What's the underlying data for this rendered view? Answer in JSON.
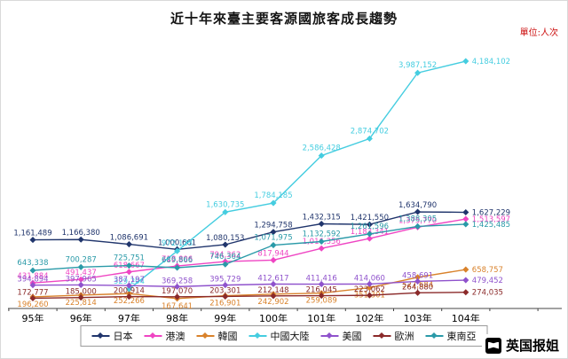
{
  "page": {
    "title": "近十年來臺主要客源國旅客成長趨勢",
    "unit_label": "單位:人次"
  },
  "watermark": {
    "text": "英国报姐"
  },
  "chart_data": {
    "type": "line",
    "title": "近十年來臺主要客源國旅客成長趨勢",
    "unit_label": "單位:人次",
    "categories": [
      "95年",
      "96年",
      "97年",
      "98年",
      "99年",
      "100年",
      "101年",
      "102年",
      "103年",
      "104年"
    ],
    "ylim": [
      0,
      4400000
    ],
    "grid": false,
    "legend_position": "bottom",
    "series": [
      {
        "name": "日本",
        "color": "#20356c",
        "values": [
          1161489,
          1166380,
          1086691,
          1000661,
          1080153,
          1294758,
          1432315,
          1421550,
          1634790,
          1627229
        ]
      },
      {
        "name": "港澳",
        "color": "#ef45c3",
        "values": [
          431884,
          491437,
          618667,
          718806,
          794362,
          817944,
          1016356,
          1183341,
          1375770,
          1513597
        ]
      },
      {
        "name": "韓國",
        "color": "#d9822b",
        "values": [
          196260,
          225814,
          252266,
          167641,
          216901,
          242902,
          259089,
          351301,
          527684,
          658757
        ]
      },
      {
        "name": "中國大陸",
        "color": "#45cde0",
        "values": [
          null,
          null,
          329204,
          972123,
          1630735,
          1784185,
          2586428,
          2874702,
          3987152,
          4184102
        ]
      },
      {
        "name": "美國",
        "color": "#8f52cc",
        "values": [
          394894,
          397965,
          387197,
          369258,
          395729,
          412617,
          411416,
          414060,
          458691,
          479452
        ]
      },
      {
        "name": "歐洲",
        "color": "#8b2a2a",
        "values": [
          172777,
          185000,
          200914,
          197070,
          203301,
          212148,
          216045,
          223062,
          264880,
          274035
        ]
      },
      {
        "name": "東南亞",
        "color": "#2a9aa8",
        "values": [
          643338,
          700287,
          725751,
          689866,
          746364,
          1071975,
          1132592,
          1261596,
          1388305,
          1425485
        ]
      }
    ]
  }
}
